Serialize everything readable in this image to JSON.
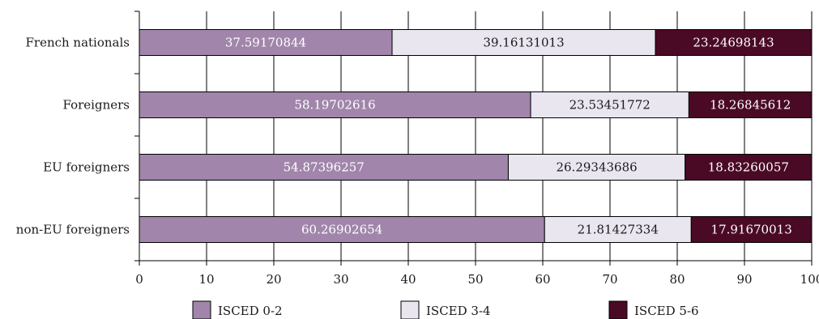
{
  "chart_data": {
    "type": "bar",
    "orientation": "horizontal",
    "stacked": true,
    "categories": [
      "French nationals",
      "Foreigners",
      "EU foreigners",
      "non-EU foreigners"
    ],
    "series": [
      {
        "name": "ISCED 0-2",
        "color": "#a185ab",
        "label_color": "#ffffff",
        "values": [
          37.59170844,
          58.19702616,
          54.87396257,
          60.26902654
        ],
        "labels": [
          "37.59170844",
          "58.19702616",
          "54.87396257",
          "60.26902654"
        ]
      },
      {
        "name": "ISCED 3-4",
        "color": "#e9e6f0",
        "label_color": "#1a1a1a",
        "values": [
          39.16131013,
          23.53451772,
          26.29343686,
          21.81427334
        ],
        "labels": [
          "39.16131013",
          "23.53451772",
          "26.29343686",
          "21.81427334"
        ]
      },
      {
        "name": "ISCED 5-6",
        "color": "#4a0a25",
        "label_color": "#ffffff",
        "values": [
          23.24698143,
          18.26845612,
          18.83260057,
          17.91670013
        ],
        "labels": [
          "23.24698143",
          "18.26845612",
          "18.83260057",
          "17.91670013"
        ]
      }
    ],
    "xlim": [
      0,
      100
    ],
    "xticks": [
      0,
      10,
      20,
      30,
      40,
      50,
      60,
      70,
      80,
      90,
      100
    ],
    "xtick_labels": [
      "0",
      "10",
      "20",
      "30",
      "40",
      "50",
      "60",
      "70",
      "80",
      "90",
      "100"
    ],
    "grid": true,
    "legend": "bottom"
  }
}
